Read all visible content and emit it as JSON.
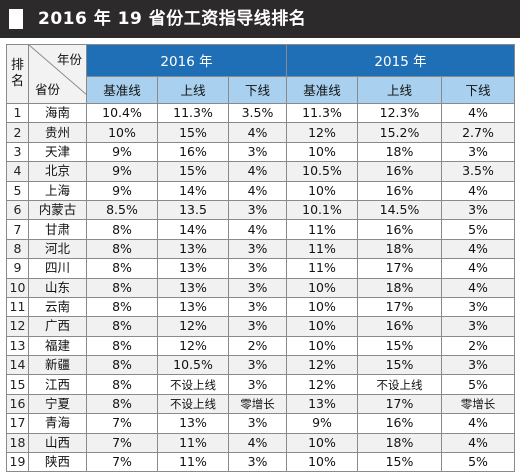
{
  "title": "2016 年 19 省份工资指导线排名",
  "header": {
    "rank_label_top": "排",
    "rank_label_bottom": "名",
    "diag_year": "年份",
    "diag_province": "省份",
    "year_2016": "2016 年",
    "year_2015": "2015 年",
    "sub_cols": [
      "基准线",
      "上线",
      "下线",
      "基准线",
      "上线",
      "下线"
    ]
  },
  "colors": {
    "title_bg": "#2c2a2b",
    "year_header": "#1f6fb7",
    "sub_header": "#a9d0ee"
  },
  "rows": [
    {
      "rank": "1",
      "province": "海南",
      "base16": "10.4%",
      "upper16": "11.3%",
      "lower16": "3.5%",
      "base15": "11.3%",
      "upper15": "12.3%",
      "lower15": "4%"
    },
    {
      "rank": "2",
      "province": "贵州",
      "base16": "10%",
      "upper16": "15%",
      "lower16": "4%",
      "base15": "12%",
      "upper15": "15.2%",
      "lower15": "2.7%"
    },
    {
      "rank": "3",
      "province": "天津",
      "base16": "9%",
      "upper16": "16%",
      "lower16": "3%",
      "base15": "10%",
      "upper15": "18%",
      "lower15": "3%"
    },
    {
      "rank": "4",
      "province": "北京",
      "base16": "9%",
      "upper16": "15%",
      "lower16": "4%",
      "base15": "10.5%",
      "upper15": "16%",
      "lower15": "3.5%"
    },
    {
      "rank": "5",
      "province": "上海",
      "base16": "9%",
      "upper16": "14%",
      "lower16": "4%",
      "base15": "10%",
      "upper15": "16%",
      "lower15": "4%"
    },
    {
      "rank": "6",
      "province": "内蒙古",
      "base16": "8.5%",
      "upper16": "13.5",
      "lower16": "3%",
      "base15": "10.1%",
      "upper15": "14.5%",
      "lower15": "3%"
    },
    {
      "rank": "7",
      "province": "甘肃",
      "base16": "8%",
      "upper16": "14%",
      "lower16": "4%",
      "base15": "11%",
      "upper15": "16%",
      "lower15": "5%"
    },
    {
      "rank": "8",
      "province": "河北",
      "base16": "8%",
      "upper16": "13%",
      "lower16": "3%",
      "base15": "11%",
      "upper15": "18%",
      "lower15": "4%"
    },
    {
      "rank": "9",
      "province": "四川",
      "base16": "8%",
      "upper16": "13%",
      "lower16": "3%",
      "base15": "11%",
      "upper15": "17%",
      "lower15": "4%"
    },
    {
      "rank": "10",
      "province": "山东",
      "base16": "8%",
      "upper16": "13%",
      "lower16": "3%",
      "base15": "10%",
      "upper15": "18%",
      "lower15": "4%"
    },
    {
      "rank": "11",
      "province": "云南",
      "base16": "8%",
      "upper16": "13%",
      "lower16": "3%",
      "base15": "10%",
      "upper15": "17%",
      "lower15": "3%"
    },
    {
      "rank": "12",
      "province": "广西",
      "base16": "8%",
      "upper16": "12%",
      "lower16": "3%",
      "base15": "10%",
      "upper15": "16%",
      "lower15": "3%"
    },
    {
      "rank": "13",
      "province": "福建",
      "base16": "8%",
      "upper16": "12%",
      "lower16": "2%",
      "base15": "10%",
      "upper15": "15%",
      "lower15": "2%"
    },
    {
      "rank": "14",
      "province": "新疆",
      "base16": "8%",
      "upper16": "10.5%",
      "lower16": "3%",
      "base15": "12%",
      "upper15": "15%",
      "lower15": "3%"
    },
    {
      "rank": "15",
      "province": "江西",
      "base16": "8%",
      "upper16": "不设上线",
      "lower16": "3%",
      "base15": "12%",
      "upper15": "不设上线",
      "lower15": "5%"
    },
    {
      "rank": "16",
      "province": "宁夏",
      "base16": "8%",
      "upper16": "不设上线",
      "lower16": "零增长",
      "base15": "13%",
      "upper15": "17%",
      "lower15": "零增长"
    },
    {
      "rank": "17",
      "province": "青海",
      "base16": "7%",
      "upper16": "13%",
      "lower16": "3%",
      "base15": "9%",
      "upper15": "16%",
      "lower15": "4%"
    },
    {
      "rank": "18",
      "province": "山西",
      "base16": "7%",
      "upper16": "11%",
      "lower16": "4%",
      "base15": "10%",
      "upper15": "18%",
      "lower15": "4%"
    },
    {
      "rank": "19",
      "province": "陕西",
      "base16": "7%",
      "upper16": "11%",
      "lower16": "3%",
      "base15": "10%",
      "upper15": "15%",
      "lower15": "5%"
    }
  ]
}
